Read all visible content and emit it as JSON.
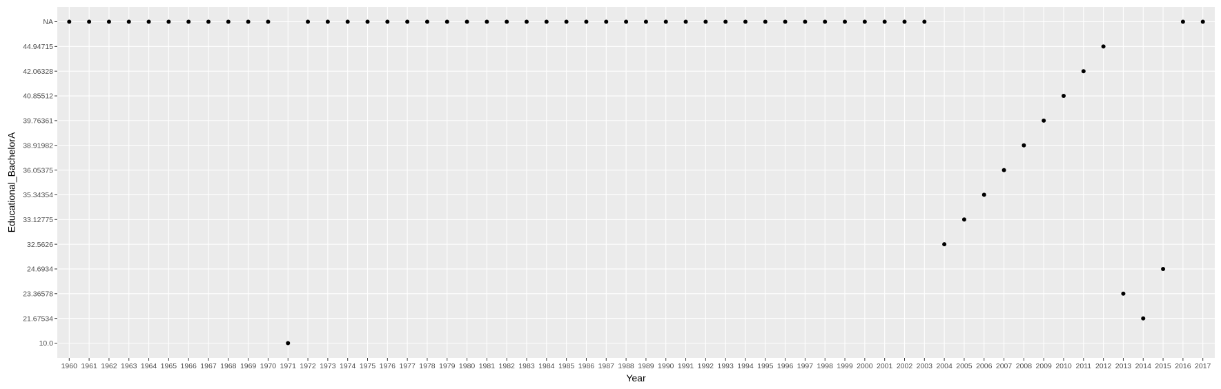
{
  "chart_data": {
    "type": "scatter",
    "title": "",
    "xlabel": "Year",
    "ylabel": "Educational_BachelorA",
    "x_type": "categorical",
    "y_type": "categorical",
    "x_categories": [
      "1960",
      "1961",
      "1962",
      "1963",
      "1964",
      "1965",
      "1966",
      "1967",
      "1968",
      "1969",
      "1970",
      "1971",
      "1972",
      "1973",
      "1974",
      "1975",
      "1976",
      "1977",
      "1978",
      "1979",
      "1980",
      "1981",
      "1982",
      "1983",
      "1984",
      "1985",
      "1986",
      "1987",
      "1988",
      "1989",
      "1990",
      "1991",
      "1992",
      "1993",
      "1994",
      "1995",
      "1996",
      "1997",
      "1998",
      "1999",
      "2000",
      "2001",
      "2002",
      "2003",
      "2004",
      "2005",
      "2006",
      "2007",
      "2008",
      "2009",
      "2010",
      "2011",
      "2012",
      "2013",
      "2014",
      "2015",
      "2016",
      "2017"
    ],
    "y_categories": [
      "10.0",
      "21.67534",
      "23.36578",
      "24.6934",
      "32.5626",
      "33.12775",
      "35.34354",
      "36.05375",
      "38.91982",
      "39.76361",
      "40.85512",
      "42.06328",
      "44.94715",
      "NA"
    ],
    "points": [
      {
        "x": "1960",
        "y": "NA"
      },
      {
        "x": "1961",
        "y": "NA"
      },
      {
        "x": "1962",
        "y": "NA"
      },
      {
        "x": "1963",
        "y": "NA"
      },
      {
        "x": "1964",
        "y": "NA"
      },
      {
        "x": "1965",
        "y": "NA"
      },
      {
        "x": "1966",
        "y": "NA"
      },
      {
        "x": "1967",
        "y": "NA"
      },
      {
        "x": "1968",
        "y": "NA"
      },
      {
        "x": "1969",
        "y": "NA"
      },
      {
        "x": "1970",
        "y": "NA"
      },
      {
        "x": "1971",
        "y": "10.0"
      },
      {
        "x": "1972",
        "y": "NA"
      },
      {
        "x": "1973",
        "y": "NA"
      },
      {
        "x": "1974",
        "y": "NA"
      },
      {
        "x": "1975",
        "y": "NA"
      },
      {
        "x": "1976",
        "y": "NA"
      },
      {
        "x": "1977",
        "y": "NA"
      },
      {
        "x": "1978",
        "y": "NA"
      },
      {
        "x": "1979",
        "y": "NA"
      },
      {
        "x": "1980",
        "y": "NA"
      },
      {
        "x": "1981",
        "y": "NA"
      },
      {
        "x": "1982",
        "y": "NA"
      },
      {
        "x": "1983",
        "y": "NA"
      },
      {
        "x": "1984",
        "y": "NA"
      },
      {
        "x": "1985",
        "y": "NA"
      },
      {
        "x": "1986",
        "y": "NA"
      },
      {
        "x": "1987",
        "y": "NA"
      },
      {
        "x": "1988",
        "y": "NA"
      },
      {
        "x": "1989",
        "y": "NA"
      },
      {
        "x": "1990",
        "y": "NA"
      },
      {
        "x": "1991",
        "y": "NA"
      },
      {
        "x": "1992",
        "y": "NA"
      },
      {
        "x": "1993",
        "y": "NA"
      },
      {
        "x": "1994",
        "y": "NA"
      },
      {
        "x": "1995",
        "y": "NA"
      },
      {
        "x": "1996",
        "y": "NA"
      },
      {
        "x": "1997",
        "y": "NA"
      },
      {
        "x": "1998",
        "y": "NA"
      },
      {
        "x": "1999",
        "y": "NA"
      },
      {
        "x": "2000",
        "y": "NA"
      },
      {
        "x": "2001",
        "y": "NA"
      },
      {
        "x": "2002",
        "y": "NA"
      },
      {
        "x": "2003",
        "y": "NA"
      },
      {
        "x": "2004",
        "y": "32.5626"
      },
      {
        "x": "2005",
        "y": "33.12775"
      },
      {
        "x": "2006",
        "y": "35.34354"
      },
      {
        "x": "2007",
        "y": "36.05375"
      },
      {
        "x": "2008",
        "y": "38.91982"
      },
      {
        "x": "2009",
        "y": "39.76361"
      },
      {
        "x": "2010",
        "y": "40.85512"
      },
      {
        "x": "2011",
        "y": "42.06328"
      },
      {
        "x": "2012",
        "y": "44.94715"
      },
      {
        "x": "2013",
        "y": "23.36578"
      },
      {
        "x": "2014",
        "y": "21.67534"
      },
      {
        "x": "2015",
        "y": "24.6934"
      },
      {
        "x": "2016",
        "y": "NA"
      },
      {
        "x": "2017",
        "y": "NA"
      }
    ],
    "grid": true,
    "legend": "none",
    "colors": {
      "panel_background": "#ebebeb",
      "grid_line": "#ffffff",
      "point": "#000000",
      "tick_text": "#4d4d4d",
      "tick_mark": "#333333",
      "axis_title": "#000000"
    }
  }
}
